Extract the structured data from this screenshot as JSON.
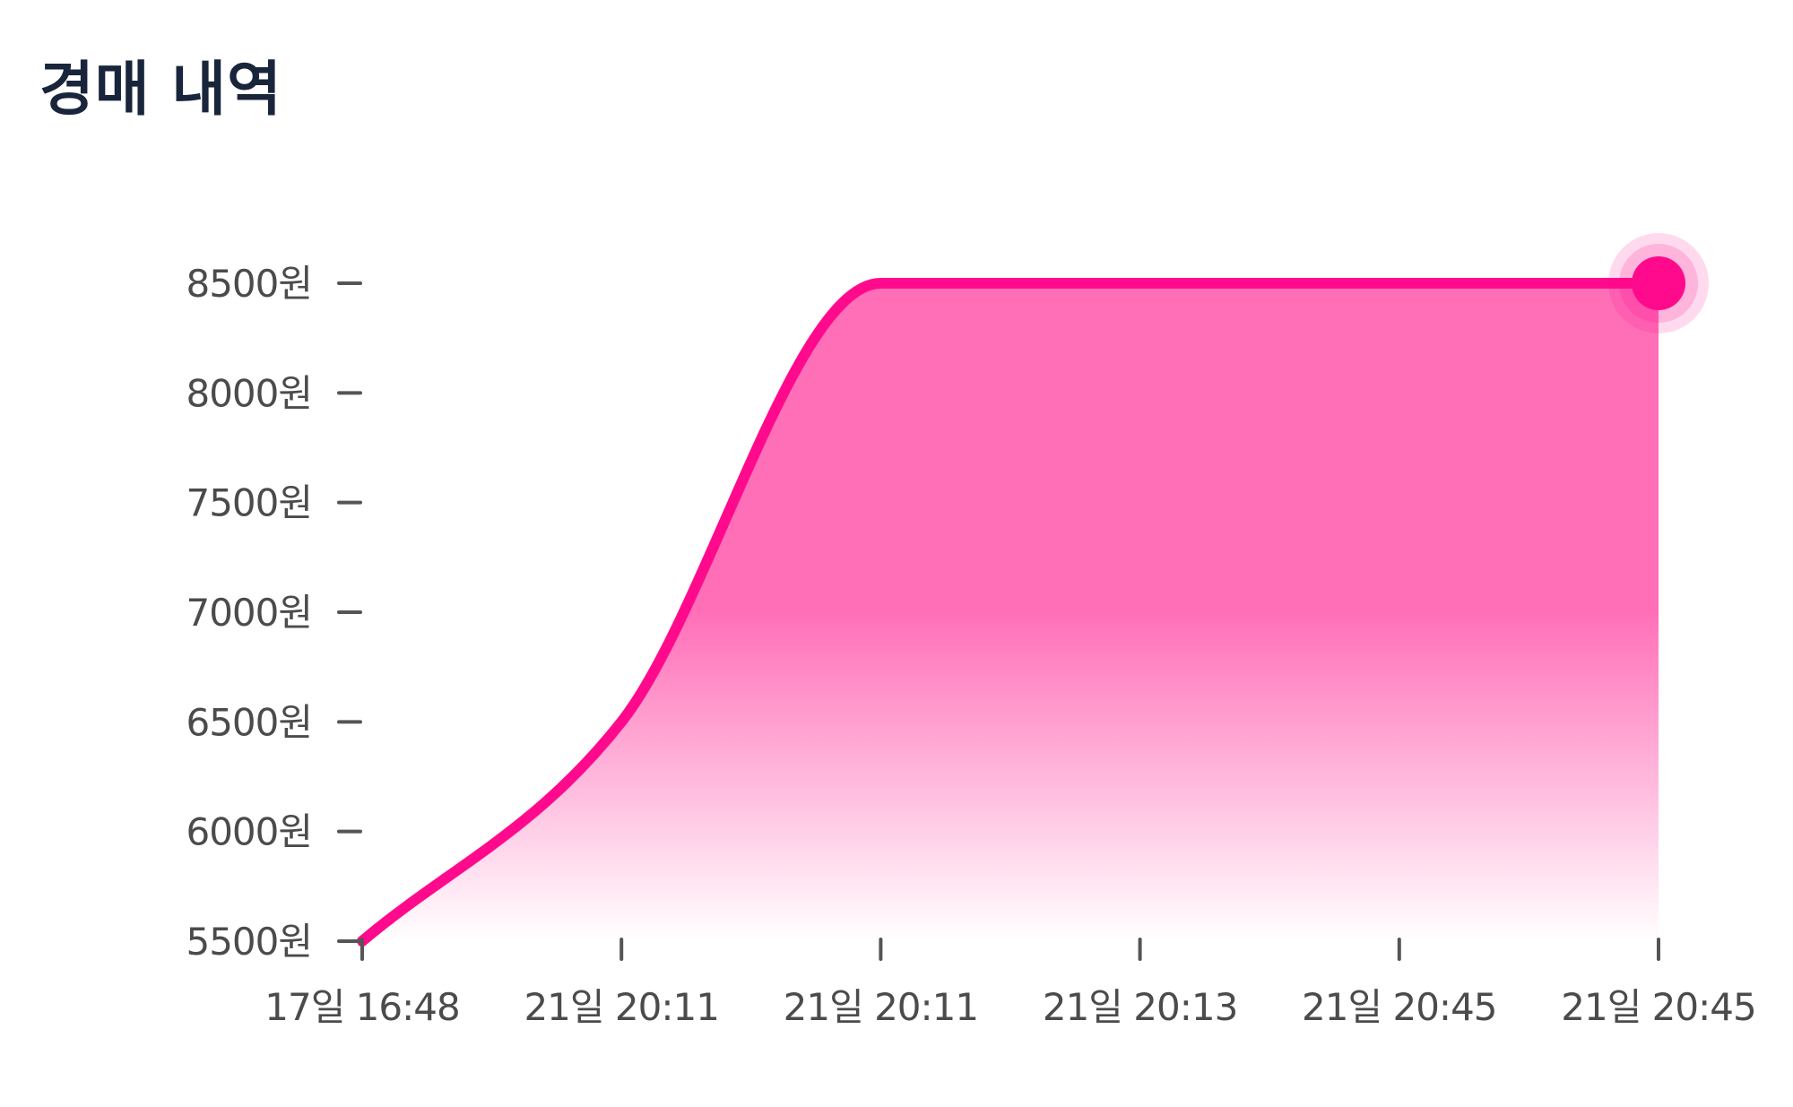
{
  "header": {
    "title": "경매 내역"
  },
  "colors": {
    "accent": "#ff0a8c",
    "fill": "#ff6fb8",
    "axis_text": "#4b4b4b",
    "title": "#18253b"
  },
  "chart_data": {
    "type": "area",
    "title": "경매 내역",
    "xlabel": "",
    "ylabel": "",
    "x": [
      "17일 16:48",
      "21일 20:11",
      "21일 20:11",
      "21일 20:13",
      "21일 20:45",
      "21일 20:45"
    ],
    "values": [
      5500,
      6500,
      8500,
      8500,
      8500,
      8500
    ],
    "y_ticks": [
      5500,
      6000,
      6500,
      7000,
      7500,
      8000,
      8500
    ],
    "y_tick_labels": [
      "5500원",
      "6000원",
      "6500원",
      "7000원",
      "7500원",
      "8000원",
      "8500원"
    ],
    "ylim": [
      5500,
      8500
    ],
    "grid": false,
    "legend": "none",
    "highlight": "last point"
  }
}
